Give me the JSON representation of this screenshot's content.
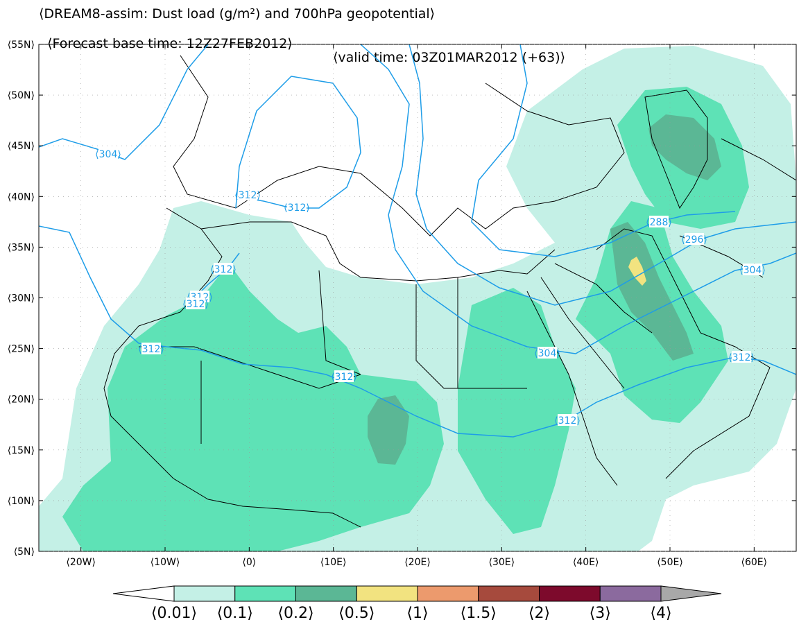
{
  "title": {
    "line1": "⟨DREAM8-assim: Dust load (g/m²) and 700hPa geopotential⟩",
    "base_time": "⟨Forecast base time: 12Z27FEB2012⟩",
    "valid_time": "⟨valid time: 03Z01MAR2012 (+63)⟩"
  },
  "map": {
    "lon_range": [
      -25,
      65
    ],
    "lat_range": [
      5,
      55
    ],
    "lat_ticks": [
      "⟨55N⟩",
      "⟨50N⟩",
      "⟨45N⟩",
      "⟨40N⟩",
      "⟨35N⟩",
      "⟨30N⟩",
      "⟨25N⟩",
      "⟨20N⟩",
      "⟨15N⟩",
      "⟨10N⟩",
      "⟨5N⟩"
    ],
    "lon_ticks": [
      "⟨20W⟩",
      "⟨10W⟩",
      "⟨0⟩",
      "⟨10E⟩",
      "⟨20E⟩",
      "⟨30E⟩",
      "⟨40E⟩",
      "⟨50E⟩",
      "⟨60E⟩"
    ],
    "lat_values": [
      55,
      50,
      45,
      40,
      35,
      30,
      25,
      20,
      15,
      10,
      5
    ],
    "lon_values": [
      -20,
      -10,
      0,
      10,
      20,
      30,
      40,
      50,
      60
    ],
    "contour_labels": [
      "⟨304⟩",
      "⟨312⟩",
      "⟨312⟩",
      "⟨312⟩",
      "⟨312⟩",
      "⟨312⟩",
      "⟨312⟩",
      "⟨312⟩",
      "⟨288⟩",
      "⟨296⟩",
      "⟨304⟩",
      "⟨304⟩",
      "⟨312⟩",
      "⟨312⟩"
    ]
  },
  "colorbar": {
    "levels": [
      "⟨0.01⟩",
      "⟨0.1⟩",
      "⟨0.2⟩",
      "⟨0.5⟩",
      "⟨1⟩",
      "⟨1.5⟩",
      "⟨2⟩",
      "⟨3⟩",
      "⟨4⟩"
    ],
    "colors": [
      "#c4f0e6",
      "#5ee2b6",
      "#5bb795",
      "#f2e380",
      "#ec9a6d",
      "#a64a3d",
      "#7d0a2c",
      "#8b6a9e"
    ],
    "under_color": "#ffffff",
    "over_color": "#a8a8a8"
  },
  "styles": {
    "contour_color": "#1e9de8",
    "coast_color": "#000000"
  }
}
